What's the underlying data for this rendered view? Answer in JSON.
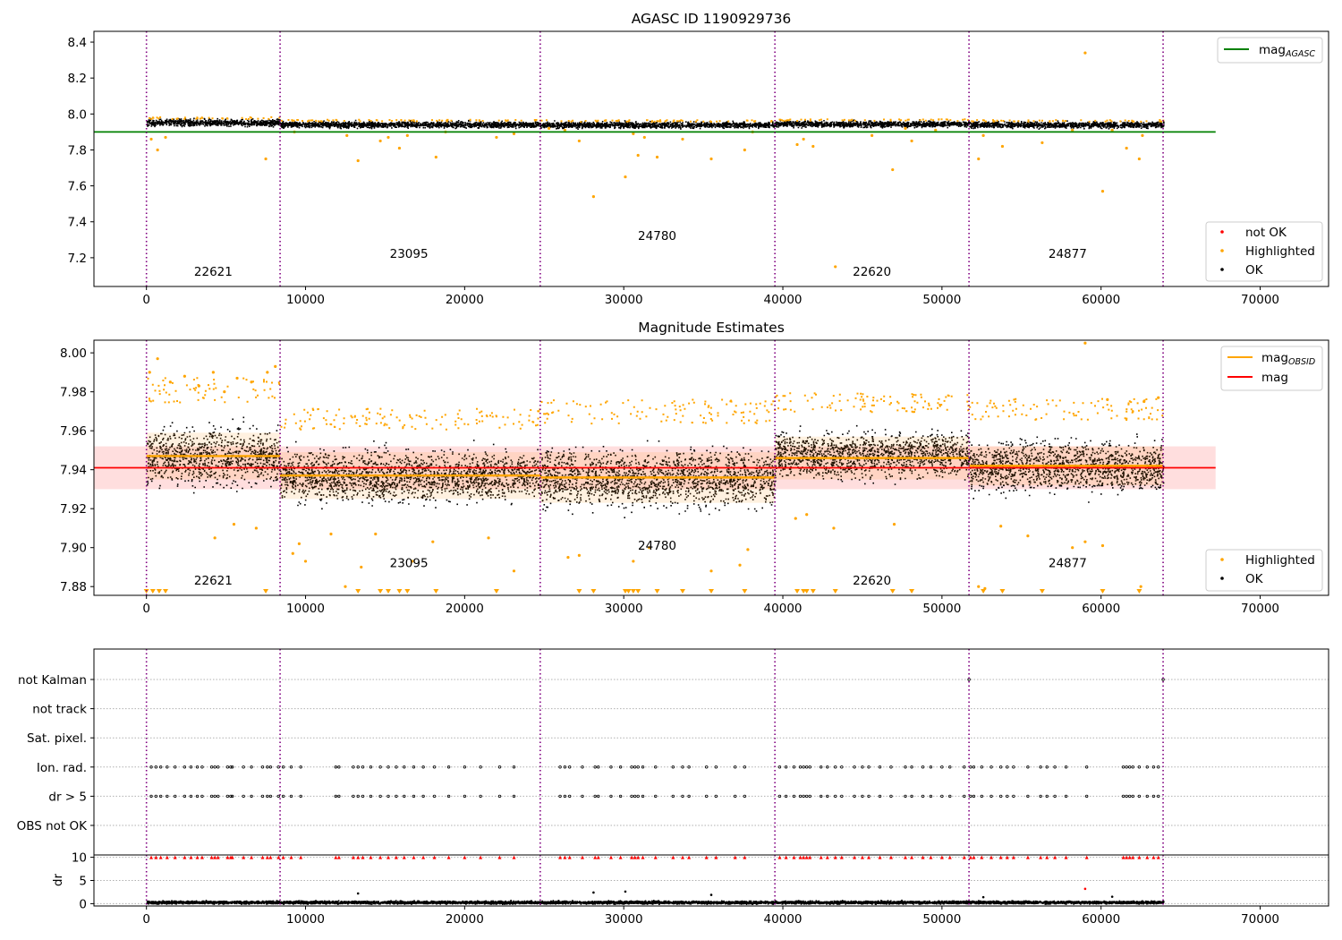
{
  "figure": {
    "title": "AGASC ID 1190929736",
    "colors": {
      "ok": "#000000",
      "highlighted": "#ffa500",
      "not_ok": "#ff0000",
      "agasc_line": "#008000",
      "obsid_line": "#ffa500",
      "mag_line": "#ff0000",
      "boundary": "#800080"
    }
  },
  "chart_data": [
    {
      "type": "scatter",
      "title": "AGASC ID 1190929736",
      "xlabel": "",
      "ylabel": "",
      "xlim": [
        -3300,
        74300
      ],
      "ylim": [
        7.04,
        8.46
      ],
      "x_ticks": [
        0,
        10000,
        20000,
        30000,
        40000,
        50000,
        60000,
        70000
      ],
      "x_tick_labels": [
        "0",
        "10000",
        "20000",
        "30000",
        "40000",
        "50000",
        "60000",
        "70000"
      ],
      "y_ticks": [
        7.2,
        7.4,
        7.6,
        7.8,
        8.0,
        8.2,
        8.4
      ],
      "y_tick_labels": [
        "7.2",
        "7.4",
        "7.6",
        "7.8",
        "8.0",
        "8.2",
        "8.4"
      ],
      "obsid_boundaries": [
        0,
        8400,
        24750,
        39500,
        51700,
        63900
      ],
      "obsid_labels": [
        {
          "text": "22621",
          "x": 4200,
          "y": 7.1
        },
        {
          "text": "23095",
          "x": 16500,
          "y": 7.2
        },
        {
          "text": "24780",
          "x": 32100,
          "y": 7.3
        },
        {
          "text": "22620",
          "x": 45600,
          "y": 7.1
        },
        {
          "text": "24877",
          "x": 57900,
          "y": 7.2
        }
      ],
      "segments": [
        {
          "x0": 0,
          "x1": 8400,
          "center": 7.955,
          "spread": 0.018
        },
        {
          "x0": 8400,
          "x1": 24750,
          "center": 7.944,
          "spread": 0.016
        },
        {
          "x0": 24750,
          "x1": 39500,
          "center": 7.942,
          "spread": 0.016
        },
        {
          "x0": 39500,
          "x1": 51700,
          "center": 7.947,
          "spread": 0.016
        },
        {
          "x0": 51700,
          "x1": 63900,
          "center": 7.943,
          "spread": 0.016
        }
      ],
      "mag_agasc": {
        "value": 7.9,
        "x0": -3300,
        "x1": 67200
      },
      "highlighted_outliers": [
        [
          300,
          7.86
        ],
        [
          700,
          7.8
        ],
        [
          1200,
          7.87
        ],
        [
          7500,
          7.75
        ],
        [
          9300,
          7.9
        ],
        [
          12600,
          7.88
        ],
        [
          13300,
          7.74
        ],
        [
          14700,
          7.85
        ],
        [
          15200,
          7.87
        ],
        [
          15900,
          7.81
        ],
        [
          16400,
          7.88
        ],
        [
          18200,
          7.76
        ],
        [
          18800,
          7.9
        ],
        [
          22000,
          7.87
        ],
        [
          23100,
          7.89
        ],
        [
          25300,
          7.92
        ],
        [
          26300,
          7.91
        ],
        [
          27200,
          7.85
        ],
        [
          28100,
          7.54
        ],
        [
          30100,
          7.65
        ],
        [
          30600,
          7.89
        ],
        [
          30900,
          7.77
        ],
        [
          31300,
          7.87
        ],
        [
          32100,
          7.76
        ],
        [
          33700,
          7.86
        ],
        [
          35500,
          7.75
        ],
        [
          37600,
          7.8
        ],
        [
          38100,
          7.9
        ],
        [
          40900,
          7.83
        ],
        [
          41300,
          7.86
        ],
        [
          41900,
          7.82
        ],
        [
          43300,
          7.15
        ],
        [
          45600,
          7.88
        ],
        [
          46900,
          7.69
        ],
        [
          47700,
          7.92
        ],
        [
          48100,
          7.85
        ],
        [
          49600,
          7.91
        ],
        [
          52300,
          7.75
        ],
        [
          52600,
          7.88
        ],
        [
          53800,
          7.82
        ],
        [
          56300,
          7.84
        ],
        [
          58200,
          7.91
        ],
        [
          59000,
          8.34
        ],
        [
          60100,
          7.57
        ],
        [
          60700,
          7.91
        ],
        [
          61600,
          7.81
        ],
        [
          62400,
          7.75
        ],
        [
          62600,
          7.88
        ]
      ],
      "legends": [
        {
          "position": "top-right",
          "entries": [
            {
              "kind": "line",
              "name": "mag",
              "subscript": "AGASC",
              "color": "#008000"
            }
          ]
        },
        {
          "position": "bottom-right",
          "entries": [
            {
              "kind": "marker",
              "name": "not OK",
              "color": "#ff0000"
            },
            {
              "kind": "marker",
              "name": "Highlighted",
              "color": "#ffa500"
            },
            {
              "kind": "marker",
              "name": "OK",
              "color": "#000000"
            }
          ]
        }
      ]
    },
    {
      "type": "scatter",
      "title": "Magnitude Estimates",
      "xlabel": "",
      "ylabel": "",
      "xlim": [
        -3300,
        74300
      ],
      "ylim": [
        7.8755,
        8.0065
      ],
      "x_ticks": [
        0,
        10000,
        20000,
        30000,
        40000,
        50000,
        60000,
        70000
      ],
      "x_tick_labels": [
        "0",
        "10000",
        "20000",
        "30000",
        "40000",
        "50000",
        "60000",
        "70000"
      ],
      "y_ticks": [
        7.88,
        7.9,
        7.92,
        7.94,
        7.96,
        7.98,
        8.0
      ],
      "y_tick_labels": [
        "7.88",
        "7.90",
        "7.92",
        "7.94",
        "7.96",
        "7.98",
        "8.00"
      ],
      "obsid_boundaries": [
        0,
        8400,
        24750,
        39500,
        51700,
        63900
      ],
      "obsid_labels": [
        {
          "text": "22621",
          "x": 4200,
          "y": 7.881
        },
        {
          "text": "23095",
          "x": 16500,
          "y": 7.89
        },
        {
          "text": "24780",
          "x": 32100,
          "y": 7.899
        },
        {
          "text": "22620",
          "x": 45600,
          "y": 7.881
        },
        {
          "text": "24877",
          "x": 57900,
          "y": 7.89
        }
      ],
      "mag": {
        "value": 7.941,
        "band": [
          7.93,
          7.952
        ],
        "x0": -3300,
        "x1": 67200
      },
      "mag_obsid": [
        {
          "x0": 0,
          "x1": 8400,
          "value": 7.947,
          "band": [
            7.935,
            7.959
          ]
        },
        {
          "x0": 8400,
          "x1": 24750,
          "value": 7.937,
          "band": [
            7.925,
            7.949
          ]
        },
        {
          "x0": 24750,
          "x1": 39500,
          "value": 7.936,
          "band": [
            7.923,
            7.949
          ]
        },
        {
          "x0": 39500,
          "x1": 51700,
          "value": 7.946,
          "band": [
            7.935,
            7.957
          ]
        },
        {
          "x0": 51700,
          "x1": 63900,
          "value": 7.942,
          "band": [
            7.932,
            7.952
          ]
        }
      ],
      "segments": [
        {
          "x0": 0,
          "x1": 8400,
          "center": 7.947,
          "spread": 0.014
        },
        {
          "x0": 8400,
          "x1": 24750,
          "center": 7.937,
          "spread": 0.012
        },
        {
          "x0": 24750,
          "x1": 39500,
          "center": 7.936,
          "spread": 0.014
        },
        {
          "x0": 39500,
          "x1": 51700,
          "center": 7.948,
          "spread": 0.011
        },
        {
          "x0": 51700,
          "x1": 63900,
          "center": 7.942,
          "spread": 0.012
        }
      ],
      "highlighted_outliers": [
        [
          200,
          7.99
        ],
        [
          700,
          7.997
        ],
        [
          1500,
          7.985
        ],
        [
          2400,
          7.988
        ],
        [
          3300,
          7.983
        ],
        [
          4200,
          7.99
        ],
        [
          4900,
          7.98
        ],
        [
          5700,
          7.987
        ],
        [
          6600,
          7.985
        ],
        [
          7600,
          7.99
        ],
        [
          8100,
          7.993
        ],
        [
          4300,
          7.905
        ],
        [
          5500,
          7.912
        ],
        [
          6900,
          7.91
        ],
        [
          9200,
          7.897
        ],
        [
          9600,
          7.902
        ],
        [
          10000,
          7.893
        ],
        [
          11600,
          7.907
        ],
        [
          12500,
          7.88
        ],
        [
          13500,
          7.89
        ],
        [
          14400,
          7.907
        ],
        [
          16700,
          7.893
        ],
        [
          18000,
          7.903
        ],
        [
          21500,
          7.905
        ],
        [
          23100,
          7.888
        ],
        [
          26500,
          7.895
        ],
        [
          27200,
          7.896
        ],
        [
          30600,
          7.893
        ],
        [
          31600,
          7.9
        ],
        [
          35500,
          7.888
        ],
        [
          37300,
          7.891
        ],
        [
          37800,
          7.899
        ],
        [
          40800,
          7.915
        ],
        [
          41500,
          7.917
        ],
        [
          43200,
          7.91
        ],
        [
          47000,
          7.912
        ],
        [
          52300,
          7.88
        ],
        [
          52700,
          7.879
        ],
        [
          53700,
          7.911
        ],
        [
          55400,
          7.906
        ],
        [
          58200,
          7.9
        ],
        [
          59000,
          7.903
        ],
        [
          60100,
          7.901
        ],
        [
          62500,
          7.88
        ],
        [
          59000,
          8.005
        ],
        [
          60400,
          7.976
        ],
        [
          62700,
          7.975
        ],
        [
          63600,
          7.977
        ]
      ],
      "below_range_markers_x": [
        0,
        400,
        800,
        1200,
        7500,
        13300,
        14700,
        15200,
        15900,
        16400,
        18200,
        22000,
        27200,
        28100,
        30100,
        30300,
        30600,
        30900,
        32100,
        33700,
        35500,
        37600,
        40900,
        41300,
        41500,
        41900,
        43300,
        46900,
        48100,
        52600,
        53800,
        56300,
        60100,
        62400
      ],
      "legends": [
        {
          "position": "top-right",
          "entries": [
            {
              "kind": "line",
              "name": "mag",
              "subscript": "OBSID",
              "color": "#ffa500"
            },
            {
              "kind": "line",
              "name": "mag",
              "subscript": "",
              "color": "#ff0000"
            }
          ]
        },
        {
          "position": "bottom-right",
          "entries": [
            {
              "kind": "marker",
              "name": "Highlighted",
              "color": "#ffa500"
            },
            {
              "kind": "marker",
              "name": "OK",
              "color": "#000000"
            }
          ]
        }
      ]
    },
    {
      "type": "scatter",
      "title": "",
      "xlabel": "",
      "ylabel": "",
      "xlim": [
        -3300,
        74300
      ],
      "categories": [
        "not Kalman",
        "not track",
        "Sat. pixel.",
        "Ion. rad.",
        "dr > 5",
        "OBS not OK"
      ],
      "obsid_boundaries": [
        0,
        8400,
        24750,
        39500,
        51700,
        63900
      ],
      "flag_events_x": [
        300,
        600,
        900,
        1300,
        1800,
        2400,
        2800,
        3200,
        3500,
        4100,
        4300,
        4500,
        5100,
        5300,
        5400,
        6100,
        6600,
        7300,
        7600,
        7800,
        8300,
        8600,
        9100,
        9700,
        11900,
        12100,
        13000,
        13300,
        13600,
        14100,
        14700,
        15200,
        15700,
        16200,
        16800,
        17400,
        18100,
        19000,
        20000,
        21000,
        22200,
        23100,
        26000,
        26300,
        26600,
        27400,
        28200,
        28400,
        29200,
        29800,
        30500,
        30700,
        30900,
        31200,
        32000,
        33100,
        33700,
        34100,
        35200,
        35800,
        37000,
        37600,
        39800,
        40200,
        40700,
        41100,
        41300,
        41500,
        41700,
        42400,
        42800,
        43300,
        43700,
        44500,
        45000,
        45400,
        46100,
        46800,
        47700,
        48100,
        48800,
        49300,
        50000,
        50500,
        51400,
        51800,
        52000,
        52500,
        53100,
        53700,
        54100,
        54500,
        55400,
        56200,
        56600,
        57100,
        57800,
        59100,
        61400,
        61600,
        61800,
        62000,
        62400,
        62900,
        63300,
        63600
      ],
      "not_kalman_x": [
        51700,
        63900
      ],
      "legends": []
    },
    {
      "type": "scatter",
      "title": "",
      "xlabel": "",
      "ylabel": "dr",
      "xlim": [
        -3300,
        74300
      ],
      "ylim": [
        -0.5,
        10.5
      ],
      "y_ticks": [
        0,
        5,
        10
      ],
      "y_tick_labels": [
        "0",
        "5",
        "10"
      ],
      "x_ticks": [
        0,
        10000,
        20000,
        30000,
        40000,
        50000,
        60000,
        70000
      ],
      "x_tick_labels": [
        "0",
        "10000",
        "20000",
        "30000",
        "40000",
        "50000",
        "60000",
        "70000"
      ],
      "obsid_boundaries": [
        0,
        8400,
        24750,
        39500,
        51700,
        63900
      ],
      "dr_cap": 10,
      "dr_baseline": {
        "mean": 0.4,
        "spread": 0.3
      },
      "dr_outliers": [
        [
          13300,
          2.2
        ],
        [
          28100,
          2.4
        ],
        [
          30100,
          2.6
        ],
        [
          35500,
          1.9
        ],
        [
          59000,
          3.2
        ],
        [
          52600,
          1.4
        ],
        [
          60700,
          1.5
        ]
      ],
      "legends": []
    }
  ]
}
